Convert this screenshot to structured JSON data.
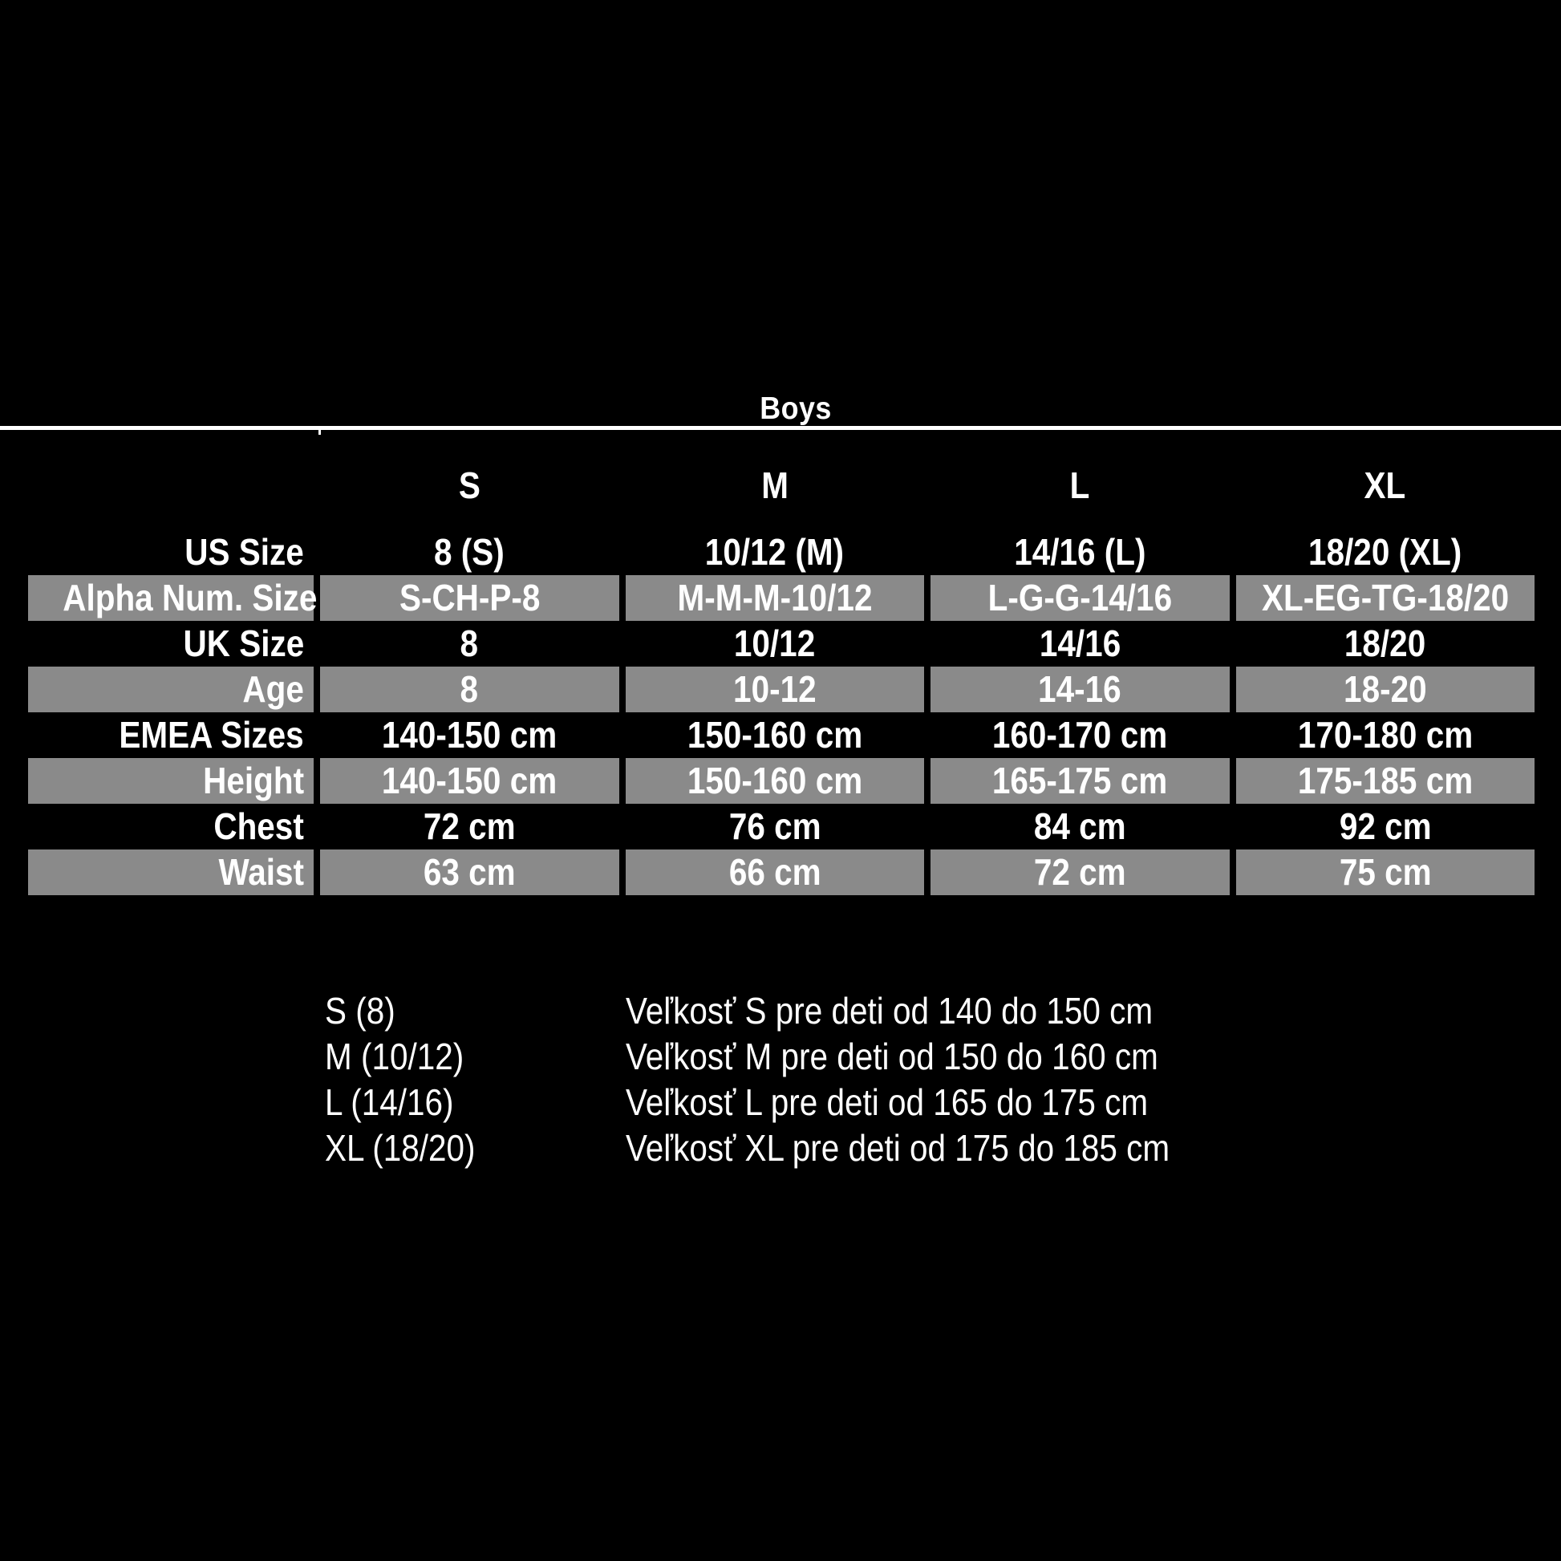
{
  "title": "Boys",
  "colors": {
    "background": "#000000",
    "shaded_row": "#8a8a8a",
    "text": "#ffffff",
    "divider": "#ffffff"
  },
  "table": {
    "columns": [
      "S",
      "M",
      "L",
      "XL"
    ],
    "rows": [
      {
        "label": "US Size",
        "shaded": false,
        "values": [
          "8 (S)",
          "10/12 (M)",
          "14/16 (L)",
          "18/20 (XL)"
        ]
      },
      {
        "label": "Alpha Num. Size",
        "shaded": true,
        "values": [
          "S-CH-P-8",
          "M-M-M-10/12",
          "L-G-G-14/16",
          "XL-EG-TG-18/20"
        ]
      },
      {
        "label": "UK Size",
        "shaded": false,
        "values": [
          "8",
          "10/12",
          "14/16",
          "18/20"
        ]
      },
      {
        "label": "Age",
        "shaded": true,
        "values": [
          "8",
          "10-12",
          "14-16",
          "18-20"
        ]
      },
      {
        "label": "EMEA Sizes",
        "shaded": false,
        "values": [
          "140-150 cm",
          "150-160 cm",
          "160-170 cm",
          "170-180 cm"
        ]
      },
      {
        "label": "Height",
        "shaded": true,
        "values": [
          "140-150 cm",
          "150-160 cm",
          "165-175 cm",
          "175-185 cm"
        ]
      },
      {
        "label": "Chest",
        "shaded": false,
        "values": [
          "72 cm",
          "76 cm",
          "84 cm",
          "92 cm"
        ]
      },
      {
        "label": "Waist",
        "shaded": true,
        "values": [
          "63 cm",
          "66 cm",
          "72 cm",
          "75 cm"
        ]
      }
    ]
  },
  "legend": [
    {
      "size": "S (8)",
      "description": "Veľkosť S pre deti od 140 do 150 cm"
    },
    {
      "size": "M (10/12)",
      "description": "Veľkosť M pre deti od 150 do 160 cm"
    },
    {
      "size": "L (14/16)",
      "description": "Veľkosť L pre deti od 165 do 175 cm"
    },
    {
      "size": "XL (18/20)",
      "description": "Veľkosť XL pre deti od 175 do 185 cm"
    }
  ]
}
